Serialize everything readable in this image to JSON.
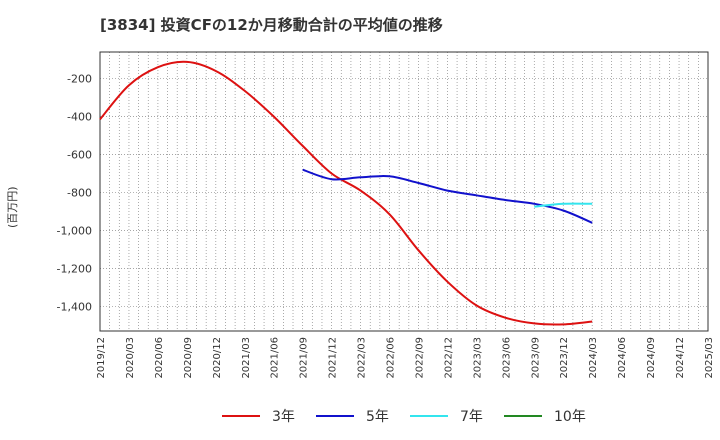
{
  "title": "[3834]  投資CFの12か月移動合計の平均値の推移",
  "y_unit_label": "(百万円)",
  "chart_data": {
    "type": "line",
    "ylim": [
      -1530,
      -60
    ],
    "yticks": [
      -200,
      -400,
      -600,
      -800,
      -1000,
      -1200,
      -1400
    ],
    "ytick_labels": [
      "-200",
      "-400",
      "-600",
      "-800",
      "-1,000",
      "-1,200",
      "-1,400"
    ],
    "x_categories": [
      "2019/12",
      "2020/03",
      "2020/06",
      "2020/09",
      "2020/12",
      "2021/03",
      "2021/06",
      "2021/09",
      "2021/12",
      "2022/03",
      "2022/06",
      "2022/09",
      "2022/12",
      "2023/03",
      "2023/06",
      "2023/09",
      "2023/12",
      "2024/03",
      "2024/06",
      "2024/09",
      "2024/12",
      "2025/03"
    ],
    "grid": true,
    "legend_position": "bottom",
    "series": [
      {
        "name": "3年",
        "color": "#dd1111",
        "points": [
          [
            "2019/12",
            -415
          ],
          [
            "2020/03",
            -235
          ],
          [
            "2020/06",
            -140
          ],
          [
            "2020/09",
            -112
          ],
          [
            "2020/12",
            -160
          ],
          [
            "2021/03",
            -265
          ],
          [
            "2021/06",
            -400
          ],
          [
            "2021/09",
            -555
          ],
          [
            "2021/12",
            -700
          ],
          [
            "2022/03",
            -790
          ],
          [
            "2022/06",
            -915
          ],
          [
            "2022/09",
            -1105
          ],
          [
            "2022/12",
            -1270
          ],
          [
            "2023/03",
            -1395
          ],
          [
            "2023/06",
            -1460
          ],
          [
            "2023/09",
            -1490
          ],
          [
            "2023/12",
            -1495
          ],
          [
            "2024/03",
            -1480
          ]
        ]
      },
      {
        "name": "5年",
        "color": "#1111cc",
        "points": [
          [
            "2021/09",
            -680
          ],
          [
            "2021/12",
            -730
          ],
          [
            "2022/03",
            -720
          ],
          [
            "2022/06",
            -715
          ],
          [
            "2022/09",
            -750
          ],
          [
            "2022/12",
            -790
          ],
          [
            "2023/03",
            -815
          ],
          [
            "2023/06",
            -840
          ],
          [
            "2023/09",
            -860
          ],
          [
            "2023/12",
            -895
          ],
          [
            "2024/03",
            -960
          ]
        ]
      },
      {
        "name": "7年",
        "color": "#33e5ee",
        "points": [
          [
            "2023/09",
            -875
          ],
          [
            "2023/12",
            -860
          ],
          [
            "2024/03",
            -860
          ]
        ]
      },
      {
        "name": "10年",
        "color": "#228822",
        "points": []
      }
    ]
  }
}
